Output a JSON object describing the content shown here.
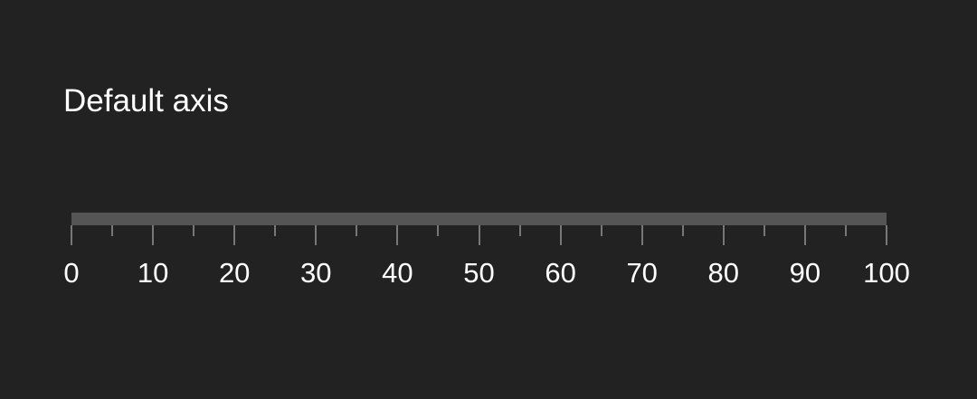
{
  "title": "Default axis",
  "axis": {
    "min": 0,
    "max": 100,
    "major_step": 10,
    "minor_step": 5,
    "tick_labels": [
      "0",
      "10",
      "20",
      "30",
      "40",
      "50",
      "60",
      "70",
      "80",
      "90",
      "100"
    ],
    "colors": {
      "background": "#222222",
      "track": "#555555",
      "ticks": "#777777",
      "text": "#ffffff"
    }
  }
}
